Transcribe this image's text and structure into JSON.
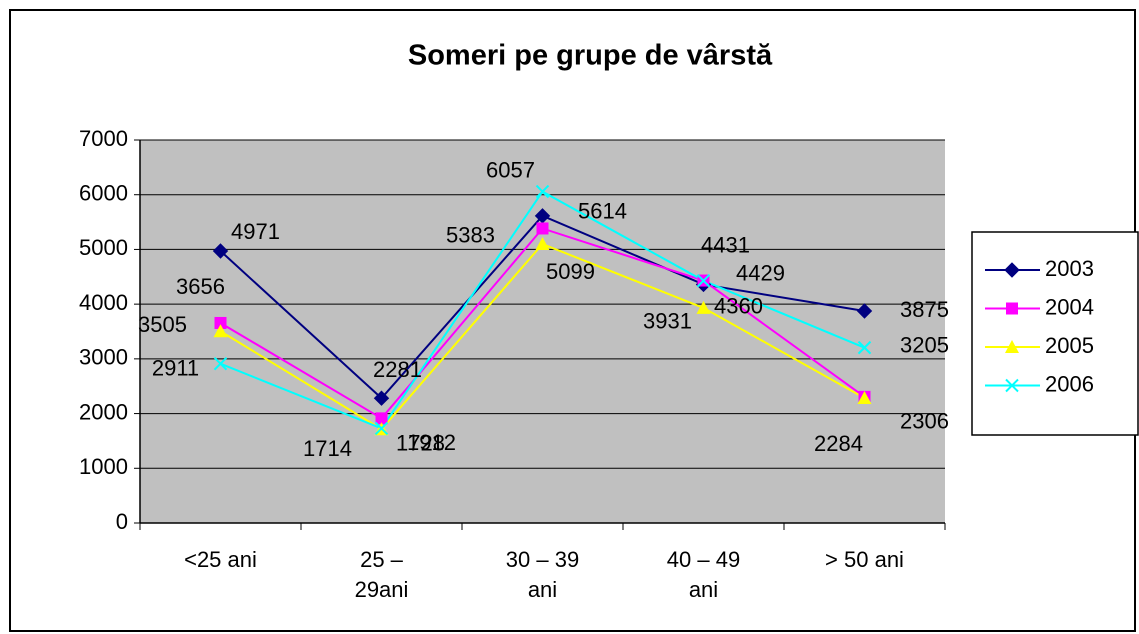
{
  "chart_data": {
    "type": "line",
    "title": "Someri pe grupe de vârstă",
    "categories": [
      "<25 ani",
      "25 – 29ani",
      "30 – 39 ani",
      "40 – 49 ani",
      "> 50 ani"
    ],
    "series": [
      {
        "name": "2003",
        "color": "#000080",
        "marker": "diamond",
        "values": [
          4971,
          2281,
          5614,
          4360,
          3875
        ]
      },
      {
        "name": "2004",
        "color": "#ff00ff",
        "marker": "square",
        "values": [
          3656,
          1912,
          5383,
          4431,
          2306
        ]
      },
      {
        "name": "2005",
        "color": "#ffff00",
        "marker": "triangle",
        "values": [
          3505,
          1714,
          5099,
          3931,
          2284
        ]
      },
      {
        "name": "2006",
        "color": "#00ffff",
        "marker": "x",
        "values": [
          2911,
          1728,
          6057,
          4429,
          3205
        ]
      }
    ],
    "ylim": [
      0,
      7000
    ],
    "yticks": [
      0,
      1000,
      2000,
      3000,
      4000,
      5000,
      6000,
      7000
    ],
    "grid": true,
    "legend": "right"
  }
}
